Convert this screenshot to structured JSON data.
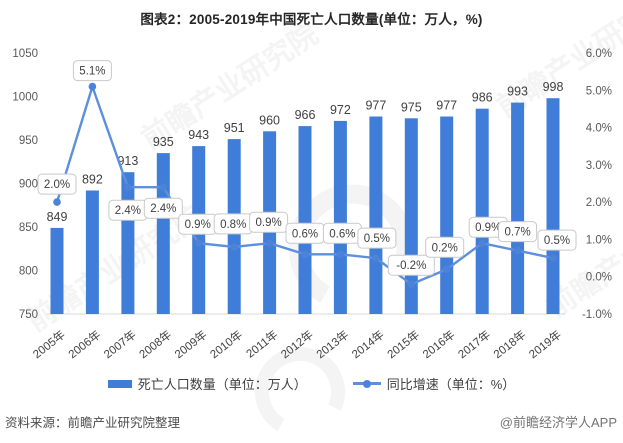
{
  "title": "图表2：2005-2019年中国死亡人口数量(单位：万人，%)",
  "watermark": {
    "text": "前瞻产业研究院"
  },
  "legend": {
    "bar_label": "死亡人口数量（单位：万人）",
    "line_label": "同比增速（单位：%）"
  },
  "footer": {
    "source": "资料来源：前瞻产业研究院整理",
    "credit": "@前瞻经济学人APP"
  },
  "colors": {
    "bar": "#3F7DD8",
    "line": "#5C8FDC",
    "dot": "#4C82D8",
    "axis_line": "#d9d9d9",
    "label": "#404040",
    "tick": "#595959",
    "callout_border": "#c9c9c9",
    "callout_bg": "#ffffff"
  },
  "chart_data": {
    "type": "bar",
    "subtype": "bar+line-combo",
    "title": "图表2：2005-2019年中国死亡人口数量(单位：万人，%)",
    "categories": [
      "2005年",
      "2006年",
      "2007年",
      "2008年",
      "2009年",
      "2010年",
      "2011年",
      "2012年",
      "2013年",
      "2014年",
      "2015年",
      "2016年",
      "2017年",
      "2018年",
      "2019年"
    ],
    "series": [
      {
        "name": "死亡人口数量（单位：万人）",
        "type": "bar",
        "axis": "left",
        "values": [
          849,
          892,
          913,
          935,
          943,
          951,
          960,
          966,
          972,
          977,
          975,
          977,
          986,
          993,
          998
        ]
      },
      {
        "name": "同比增速（单位：%）",
        "type": "line",
        "axis": "right",
        "values": [
          2.0,
          5.1,
          2.4,
          2.4,
          0.9,
          0.8,
          0.9,
          0.6,
          0.6,
          0.5,
          -0.2,
          0.2,
          0.9,
          0.7,
          0.5
        ],
        "labels": [
          "2.0%",
          "5.1%",
          "2.4%",
          "2.4%",
          "0.9%",
          "0.8%",
          "0.9%",
          "0.6%",
          "0.6%",
          "0.5%",
          "-0.2%",
          "0.2%",
          "0.9%",
          "0.7%",
          "0.5%"
        ]
      }
    ],
    "left_axis": {
      "ticks": [
        1050,
        1000,
        950,
        900,
        850,
        800,
        750
      ],
      "min": 750,
      "max": 1050
    },
    "right_axis": {
      "ticks": [
        "6.0%",
        "5.0%",
        "4.0%",
        "3.0%",
        "2.0%",
        "1.0%",
        "0.0%",
        "-1.0%"
      ],
      "min": -1.0,
      "max": 6.0
    },
    "grid": false,
    "legend_position": "bottom"
  }
}
